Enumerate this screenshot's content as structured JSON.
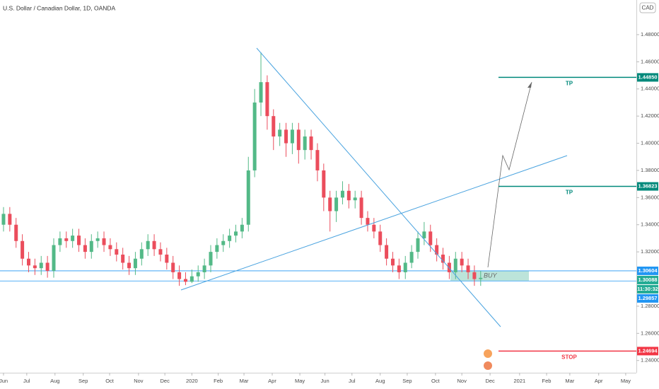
{
  "chart_data": {
    "type": "candlestick",
    "title": "U.S. Dollar / Canadian Dollar, 1D, OANDA",
    "currency": "CAD",
    "up_color": "#53b987",
    "down_color": "#eb4d5c",
    "categories": [
      null,
      null,
      null,
      null,
      null,
      null,
      null,
      null,
      null,
      null,
      null,
      null,
      null,
      null,
      null,
      null,
      null,
      null,
      null,
      null,
      null,
      null,
      null,
      null,
      null,
      null,
      null,
      null,
      null,
      null,
      null,
      null,
      null,
      null,
      null,
      null,
      null,
      null,
      null,
      null,
      null,
      null,
      null,
      null,
      null,
      null,
      null,
      null,
      null,
      null,
      null,
      null,
      null,
      null,
      null,
      null,
      null,
      null,
      null,
      null,
      null,
      null,
      null,
      null,
      null,
      null,
      null,
      null,
      null,
      null,
      null,
      null,
      null,
      null,
      null,
      null,
      null
    ],
    "open": [
      1.34,
      1.348,
      1.34,
      1.328,
      1.315,
      1.31,
      1.308,
      1.312,
      1.306,
      1.325,
      1.33,
      1.328,
      1.332,
      1.325,
      1.32,
      1.328,
      1.33,
      1.325,
      1.322,
      1.318,
      1.312,
      1.308,
      1.315,
      1.322,
      1.328,
      1.322,
      1.318,
      1.312,
      1.305,
      1.3,
      1.298,
      1.302,
      1.305,
      1.31,
      1.32,
      1.325,
      1.328,
      1.332,
      1.335,
      1.34,
      1.38,
      1.43,
      1.445,
      1.42,
      1.405,
      1.41,
      1.4,
      1.41,
      1.395,
      1.405,
      1.395,
      1.38,
      1.36,
      1.35,
      1.36,
      1.365,
      1.358,
      1.36,
      1.345,
      1.34,
      1.335,
      1.325,
      1.315,
      1.31,
      1.305,
      1.312,
      1.32,
      1.33,
      1.335,
      1.325,
      1.318,
      1.312,
      1.305,
      1.315,
      1.31,
      1.305,
      1.3
    ],
    "high": [
      1.353,
      1.353,
      1.345,
      1.333,
      1.32,
      1.315,
      1.317,
      1.317,
      1.33,
      1.335,
      1.335,
      1.337,
      1.337,
      1.33,
      1.333,
      1.335,
      1.335,
      1.33,
      1.327,
      1.323,
      1.317,
      1.32,
      1.327,
      1.333,
      1.333,
      1.327,
      1.323,
      1.317,
      1.31,
      1.305,
      1.307,
      1.31,
      1.315,
      1.325,
      1.33,
      1.333,
      1.337,
      1.34,
      1.345,
      1.39,
      1.44,
      1.467,
      1.45,
      1.425,
      1.415,
      1.415,
      1.415,
      1.415,
      1.41,
      1.41,
      1.4,
      1.385,
      1.365,
      1.365,
      1.372,
      1.37,
      1.365,
      1.365,
      1.35,
      1.345,
      1.34,
      1.33,
      1.32,
      1.315,
      1.317,
      1.325,
      1.335,
      1.342,
      1.34,
      1.33,
      1.323,
      1.317,
      1.32,
      1.32,
      1.315,
      1.31,
      1.306
    ],
    "low": [
      1.335,
      1.335,
      1.323,
      1.31,
      1.305,
      1.303,
      1.303,
      1.301,
      1.301,
      1.32,
      1.323,
      1.323,
      1.32,
      1.315,
      1.315,
      1.323,
      1.32,
      1.317,
      1.313,
      1.307,
      1.303,
      1.303,
      1.31,
      1.317,
      1.317,
      1.313,
      1.307,
      1.3,
      1.295,
      1.2955,
      1.297,
      1.298,
      1.3,
      1.305,
      1.315,
      1.32,
      1.323,
      1.327,
      1.33,
      1.335,
      1.375,
      1.42,
      1.41,
      1.395,
      1.398,
      1.39,
      1.392,
      1.385,
      1.388,
      1.388,
      1.372,
      1.35,
      1.335,
      1.342,
      1.355,
      1.352,
      1.352,
      1.34,
      1.335,
      1.33,
      1.32,
      1.31,
      1.305,
      1.3,
      1.3,
      1.308,
      1.315,
      1.325,
      1.32,
      1.313,
      1.307,
      1.3,
      1.3,
      1.305,
      1.3,
      1.295,
      1.295
    ],
    "close": [
      1.348,
      1.34,
      1.328,
      1.315,
      1.31,
      1.308,
      1.312,
      1.306,
      1.325,
      1.33,
      1.328,
      1.332,
      1.325,
      1.32,
      1.328,
      1.33,
      1.325,
      1.322,
      1.318,
      1.312,
      1.308,
      1.315,
      1.322,
      1.328,
      1.322,
      1.318,
      1.312,
      1.305,
      1.3,
      1.298,
      1.302,
      1.305,
      1.31,
      1.32,
      1.325,
      1.328,
      1.332,
      1.335,
      1.34,
      1.38,
      1.43,
      1.445,
      1.42,
      1.405,
      1.41,
      1.4,
      1.41,
      1.395,
      1.405,
      1.395,
      1.38,
      1.36,
      1.35,
      1.36,
      1.365,
      1.358,
      1.36,
      1.345,
      1.34,
      1.335,
      1.325,
      1.315,
      1.31,
      1.305,
      1.312,
      1.32,
      1.33,
      1.335,
      1.325,
      1.318,
      1.312,
      1.305,
      1.315,
      1.31,
      1.305,
      1.3,
      1.30088
    ],
    "xlim": [
      -0.56,
      100.8
    ],
    "xticks": [
      {
        "value": 0,
        "label": "Jun"
      },
      {
        "value": 3.7,
        "label": "Jul"
      },
      {
        "value": 8.2,
        "label": "Aug"
      },
      {
        "value": 12.7,
        "label": "Sep"
      },
      {
        "value": 16.9,
        "label": "Oct"
      },
      {
        "value": 21.5,
        "label": "Nov"
      },
      {
        "value": 25.7,
        "label": "Dec"
      },
      {
        "value": 30,
        "label": "2020"
      },
      {
        "value": 34.2,
        "label": "Feb"
      },
      {
        "value": 38.3,
        "label": "Mar"
      },
      {
        "value": 42.8,
        "label": "Apr"
      },
      {
        "value": 47.2,
        "label": "May"
      },
      {
        "value": 51.2,
        "label": "Jun"
      },
      {
        "value": 55.5,
        "label": "Jul"
      },
      {
        "value": 60,
        "label": "Aug"
      },
      {
        "value": 64.3,
        "label": "Sep"
      },
      {
        "value": 68.8,
        "label": "Oct"
      },
      {
        "value": 73,
        "label": "Nov"
      },
      {
        "value": 77.5,
        "label": "Dec"
      },
      {
        "value": 82.2,
        "label": "2021"
      },
      {
        "value": 86.5,
        "label": "Feb"
      },
      {
        "value": 90.2,
        "label": "Mar"
      },
      {
        "value": 94.8,
        "label": "Apr"
      },
      {
        "value": 99.1,
        "label": "May"
      }
    ],
    "ylim": [
      1.231,
      1.5055
    ],
    "yticks": [
      {
        "value": 1.48,
        "label": "1.48000"
      },
      {
        "value": 1.46,
        "label": "1.46000"
      },
      {
        "value": 1.44,
        "label": "1.44000"
      },
      {
        "value": 1.42,
        "label": "1.42000"
      },
      {
        "value": 1.4,
        "label": "1.40000"
      },
      {
        "value": 1.38,
        "label": "1.38000"
      },
      {
        "value": 1.36,
        "label": "1.36000"
      },
      {
        "value": 1.34,
        "label": "1.34000"
      },
      {
        "value": 1.32,
        "label": "1.32000"
      },
      {
        "value": 1.28,
        "label": "1.28000"
      },
      {
        "value": 1.26,
        "label": "1.26000"
      },
      {
        "value": 1.24,
        "label": "1.24000"
      }
    ],
    "targets": [
      {
        "value": 1.4485,
        "label": "1.44850",
        "tag": "TP",
        "color": "#00897b"
      },
      {
        "value": 1.36823,
        "label": "1.36823",
        "tag": "TP",
        "color": "#00897b"
      },
      {
        "value": 1.24694,
        "label": "1.24694",
        "tag": "STOP",
        "color": "#f23645"
      }
    ],
    "zone_top": {
      "value": 1.30604,
      "label": "1.30604",
      "color": "#2196f3"
    },
    "last_price": {
      "value": 1.30088,
      "label": "1.30088",
      "countdown": "11:30:32",
      "color": "#22ab94"
    },
    "zone_bottom": {
      "value": 1.29857,
      "label": "1.29857",
      "color": "#2196f3"
    },
    "zone_label": "BUY"
  }
}
